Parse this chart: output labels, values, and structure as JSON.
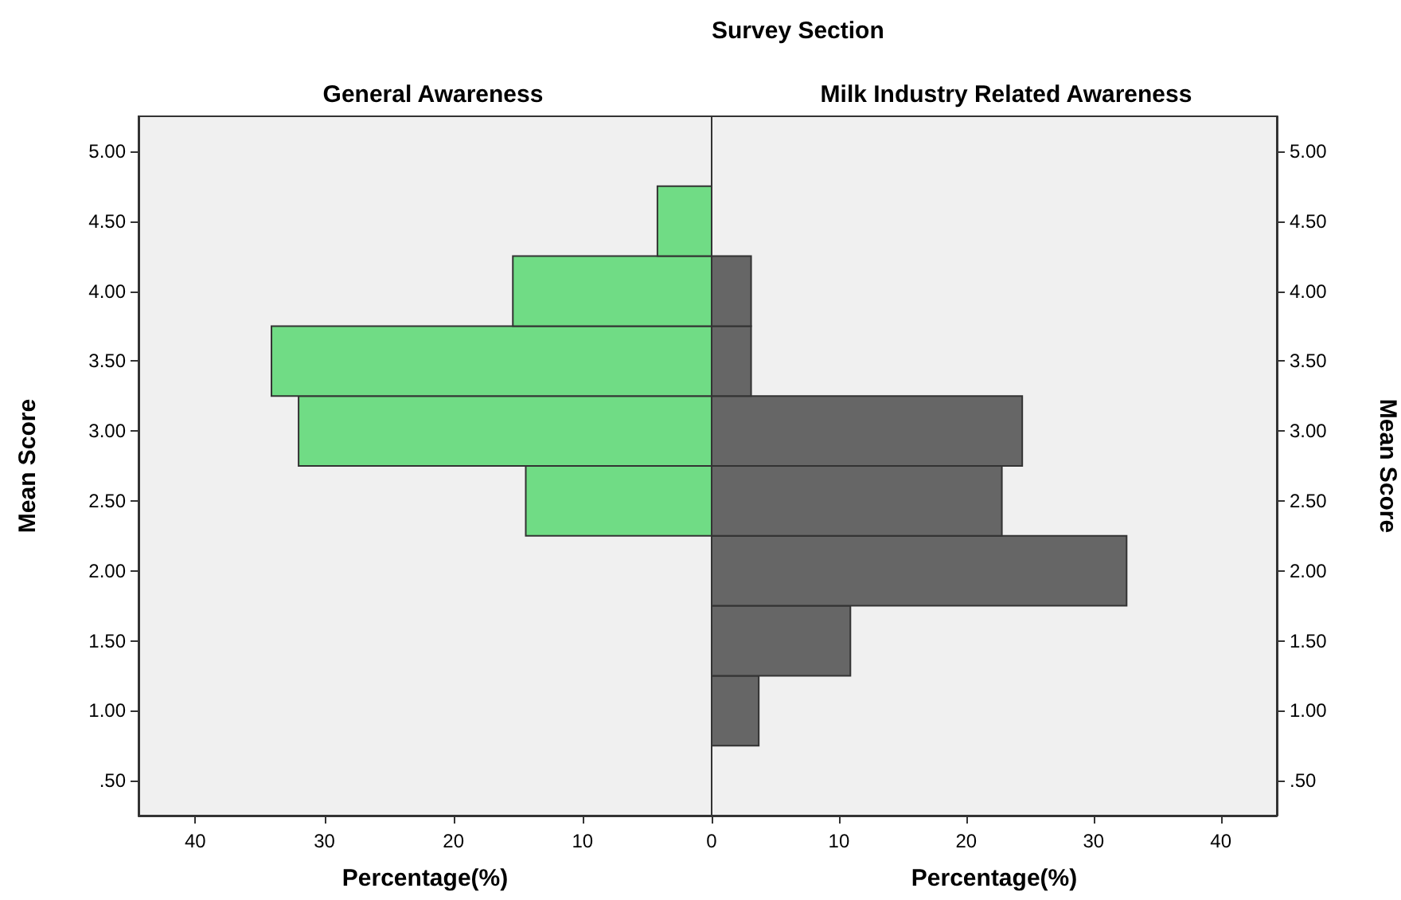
{
  "chart_data": [
    {
      "type": "histogram",
      "orientation": "horizontal",
      "title": "General Awareness",
      "annotations": [
        "Survey Section"
      ],
      "xlabel": "Percentage(%)",
      "ylabel": "Mean Score",
      "color": "#70dc85",
      "bins": [
        0.75,
        1.25,
        1.75,
        2.25,
        2.75,
        3.25,
        3.75,
        4.25,
        4.75
      ],
      "values": [
        0,
        0,
        0,
        14.4,
        32.0,
        34.1,
        15.4,
        4.2
      ],
      "xlim": [
        44.4,
        0
      ],
      "xticks": [
        40,
        30,
        20,
        10,
        0
      ],
      "ylim": [
        0.25,
        5.25
      ],
      "yticks": [
        {
          "value": 0.5,
          "label": ".50"
        },
        {
          "value": 1,
          "label": "1.00"
        },
        {
          "value": 1.5,
          "label": "1.50"
        },
        {
          "value": 2,
          "label": "2.00"
        },
        {
          "value": 2.5,
          "label": "2.50"
        },
        {
          "value": 3,
          "label": "3.00"
        },
        {
          "value": 3.5,
          "label": "3.50"
        },
        {
          "value": 4,
          "label": "4.00"
        },
        {
          "value": 4.5,
          "label": "4.50"
        },
        {
          "value": 5,
          "label": "5.00"
        }
      ]
    },
    {
      "type": "histogram",
      "orientation": "horizontal",
      "title": "Milk Industry Related Awareness",
      "xlabel": "Percentage(%)",
      "ylabel": "Mean Score",
      "color": "#666666",
      "bins": [
        0.75,
        1.25,
        1.75,
        2.25,
        2.75,
        3.25,
        3.75,
        4.25,
        4.75
      ],
      "values": [
        3.7,
        10.9,
        32.6,
        22.8,
        24.4,
        3.1,
        3.1,
        0
      ],
      "xlim": [
        0,
        44.4
      ],
      "xticks": [
        {
          "value": 0,
          "label": null
        },
        10,
        20,
        30,
        40
      ],
      "ylim": [
        0.25,
        5.25
      ],
      "yticks": [
        {
          "value": 0.5,
          "label": ".50"
        },
        {
          "value": 1,
          "label": "1.00"
        },
        {
          "value": 1.5,
          "label": "1.50"
        },
        {
          "value": 2,
          "label": "2.00"
        },
        {
          "value": 2.5,
          "label": "2.50"
        },
        {
          "value": 3,
          "label": "3.00"
        },
        {
          "value": 3.5,
          "label": "3.50"
        },
        {
          "value": 4,
          "label": "4.00"
        },
        {
          "value": 4.5,
          "label": "4.50"
        },
        {
          "value": 5,
          "label": "5.00"
        }
      ]
    }
  ]
}
